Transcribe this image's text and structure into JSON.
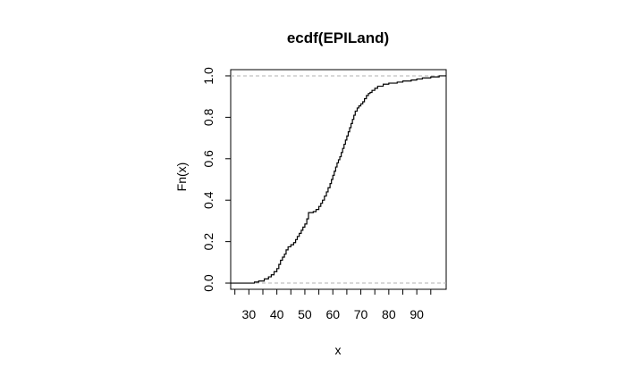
{
  "chart_data": {
    "type": "line",
    "title": "ecdf(EPILand)",
    "xlabel": "x",
    "ylabel": "Fn(x)",
    "xlim": [
      23.5,
      100.5
    ],
    "ylim": [
      -0.03,
      1.03
    ],
    "x_ticks": [
      "30",
      "40",
      "50",
      "60",
      "70",
      "80",
      "90"
    ],
    "y_ticks": [
      "0.0",
      "0.2",
      "0.4",
      "0.6",
      "0.8",
      "1.0"
    ],
    "reference_lines": [
      0,
      1
    ],
    "colors": {
      "line": "#000000",
      "reference": "#b0b0b0",
      "frame": "#000000"
    },
    "series": [
      {
        "x": [
          32.0,
          33.5,
          35.5,
          37.0,
          38.0,
          39.0,
          40.0,
          40.7,
          41.3,
          42.0,
          42.7,
          43.3,
          44.0,
          45.0,
          46.0,
          46.7,
          47.3,
          48.0,
          48.7,
          49.3,
          50.0,
          50.7,
          51.3,
          52.0,
          53.0,
          54.0,
          55.0,
          55.7,
          56.3,
          57.0,
          57.7,
          58.3,
          59.0,
          59.5,
          60.0,
          60.5,
          61.0,
          61.5,
          62.0,
          62.5,
          63.0,
          63.5,
          64.0,
          64.5,
          65.0,
          65.5,
          66.0,
          66.5,
          67.0,
          67.5,
          68.0,
          68.7,
          69.3,
          70.0,
          70.7,
          71.3,
          72.0,
          72.7,
          73.3,
          74.0,
          75.0,
          76.0,
          78.0,
          80.0,
          83.0,
          85.0,
          88.0,
          90.0,
          92.0,
          95.0,
          98.0
        ],
        "y": [
          0.005,
          0.01,
          0.02,
          0.03,
          0.04,
          0.055,
          0.07,
          0.09,
          0.11,
          0.125,
          0.14,
          0.16,
          0.175,
          0.185,
          0.195,
          0.21,
          0.225,
          0.24,
          0.255,
          0.27,
          0.285,
          0.31,
          0.34,
          0.34,
          0.345,
          0.355,
          0.37,
          0.385,
          0.4,
          0.42,
          0.44,
          0.46,
          0.48,
          0.5,
          0.52,
          0.54,
          0.56,
          0.58,
          0.595,
          0.61,
          0.63,
          0.65,
          0.67,
          0.69,
          0.71,
          0.73,
          0.75,
          0.77,
          0.79,
          0.81,
          0.83,
          0.845,
          0.855,
          0.865,
          0.875,
          0.89,
          0.905,
          0.915,
          0.92,
          0.93,
          0.94,
          0.95,
          0.96,
          0.965,
          0.97,
          0.975,
          0.98,
          0.985,
          0.99,
          0.995,
          1.0
        ]
      }
    ]
  }
}
